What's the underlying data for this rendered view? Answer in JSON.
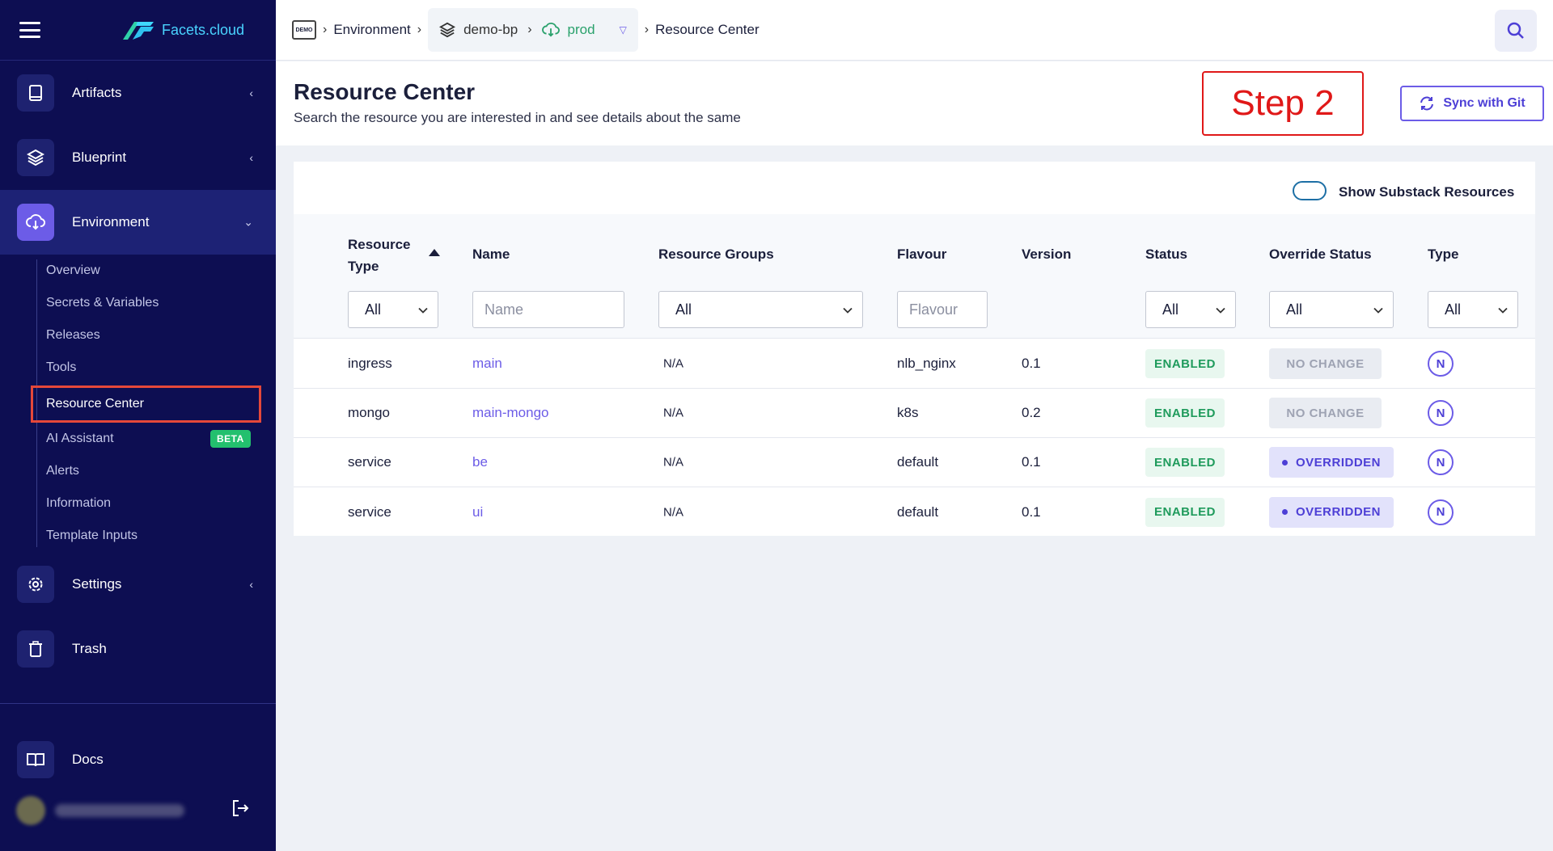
{
  "brand": {
    "name_main": "Facets",
    "name_suffix": ".cloud"
  },
  "sidebar": {
    "items": [
      {
        "label": "Artifacts"
      },
      {
        "label": "Blueprint"
      },
      {
        "label": "Environment"
      },
      {
        "label": "Settings"
      },
      {
        "label": "Trash"
      }
    ],
    "environment_sub": [
      {
        "label": "Overview"
      },
      {
        "label": "Secrets & Variables"
      },
      {
        "label": "Releases"
      },
      {
        "label": "Tools"
      },
      {
        "label": "Resource Center"
      },
      {
        "label": "AI Assistant",
        "badge": "BETA"
      },
      {
        "label": "Alerts"
      },
      {
        "label": "Information"
      },
      {
        "label": "Template Inputs"
      }
    ],
    "docs_label": "Docs"
  },
  "breadcrumb": {
    "icon_text": "DEMO",
    "environment": "Environment",
    "blueprint": "demo-bp",
    "env_name": "prod",
    "current": "Resource Center"
  },
  "header": {
    "title": "Resource Center",
    "subtitle": "Search the resource you are interested in and see details about the same",
    "step_label": "Step 2",
    "sync_label": "Sync with Git"
  },
  "table": {
    "toggle_label": "Show Substack Resources",
    "columns": {
      "resource_type_1": "Resource",
      "resource_type_2": "Type",
      "name": "Name",
      "resource_groups": "Resource Groups",
      "flavour": "Flavour",
      "version": "Version",
      "status": "Status",
      "override_status": "Override Status",
      "type": "Type"
    },
    "filters": {
      "resource_type": "All",
      "name_placeholder": "Name",
      "resource_groups": "All",
      "flavour_placeholder": "Flavour",
      "status": "All",
      "override_status": "All",
      "type": "All"
    },
    "rows": [
      {
        "resource_type": "ingress",
        "name": "main",
        "resource_groups": "N/A",
        "flavour": "nlb_nginx",
        "version": "0.1",
        "status": "ENABLED",
        "override": "NO CHANGE",
        "type": "N"
      },
      {
        "resource_type": "mongo",
        "name": "main-mongo",
        "resource_groups": "N/A",
        "flavour": "k8s",
        "version": "0.2",
        "status": "ENABLED",
        "override": "NO CHANGE",
        "type": "N"
      },
      {
        "resource_type": "service",
        "name": "be",
        "resource_groups": "N/A",
        "flavour": "default",
        "version": "0.1",
        "status": "ENABLED",
        "override": "OVERRIDDEN",
        "type": "N"
      },
      {
        "resource_type": "service",
        "name": "ui",
        "resource_groups": "N/A",
        "flavour": "default",
        "version": "0.1",
        "status": "ENABLED",
        "override": "OVERRIDDEN",
        "type": "N"
      }
    ]
  },
  "colors": {
    "sidebar_bg": "#0d0e52",
    "accent": "#6c5ce7",
    "enabled": "#1f9b5c",
    "step": "#e01818"
  }
}
